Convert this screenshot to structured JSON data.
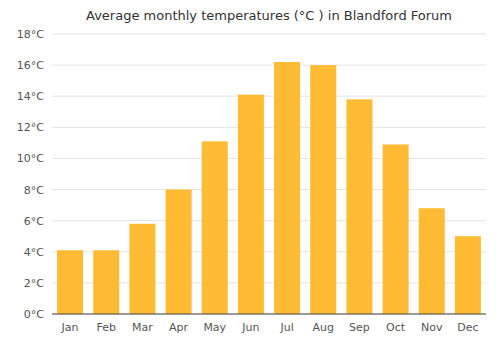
{
  "chart_data": {
    "type": "bar",
    "title": "Average monthly temperatures (°C ) in Blandford Forum",
    "categories": [
      "Jan",
      "Feb",
      "Mar",
      "Apr",
      "May",
      "Jun",
      "Jul",
      "Aug",
      "Sep",
      "Oct",
      "Nov",
      "Dec"
    ],
    "values": [
      4.1,
      4.1,
      5.8,
      8.0,
      11.1,
      14.1,
      16.2,
      16.0,
      13.8,
      10.9,
      6.8,
      5.0
    ],
    "color": "#FFBB33",
    "ylim": [
      0,
      18
    ],
    "yticks": [
      {
        "value": 0,
        "label": "0°C"
      },
      {
        "value": 2,
        "label": "2°C"
      },
      {
        "value": 4,
        "label": "4°C"
      },
      {
        "value": 6,
        "label": "6°C"
      },
      {
        "value": 8,
        "label": "8°C"
      },
      {
        "value": 10,
        "label": "10°C"
      },
      {
        "value": 12,
        "label": "12°C"
      },
      {
        "value": 14,
        "label": "14°C"
      },
      {
        "value": 16,
        "label": "16°C"
      },
      {
        "value": 18,
        "label": "18°C"
      }
    ],
    "grid": true
  }
}
